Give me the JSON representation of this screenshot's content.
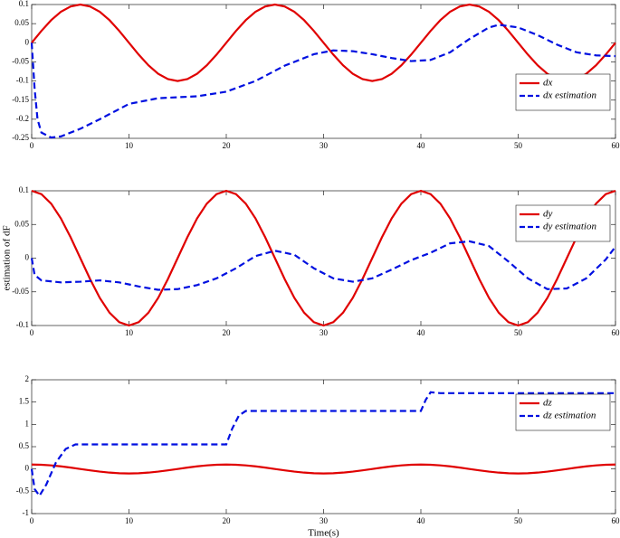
{
  "chart_data": [
    {
      "type": "line",
      "xlim": [
        0,
        60
      ],
      "ylim": [
        -0.25,
        0.1
      ],
      "xticks": [
        0,
        10,
        20,
        30,
        40,
        50,
        60
      ],
      "yticks": [
        -0.25,
        -0.2,
        -0.15,
        -0.1,
        -0.05,
        0,
        0.05,
        0.1
      ],
      "legend": "lower right",
      "series": [
        {
          "name": "dx",
          "color": "#e00000",
          "dash": false,
          "x": [
            0,
            1,
            2,
            3,
            4,
            5,
            6,
            7,
            8,
            9,
            10,
            11,
            12,
            13,
            14,
            15,
            16,
            17,
            18,
            19,
            20,
            21,
            22,
            23,
            24,
            25,
            26,
            27,
            28,
            29,
            30,
            31,
            32,
            33,
            34,
            35,
            36,
            37,
            38,
            39,
            40,
            41,
            42,
            43,
            44,
            45,
            46,
            47,
            48,
            49,
            50,
            51,
            52,
            53,
            54,
            55,
            56,
            57,
            58,
            59,
            60
          ],
          "values": [
            0,
            0.031,
            0.059,
            0.081,
            0.095,
            0.1,
            0.095,
            0.081,
            0.059,
            0.031,
            0,
            -0.031,
            -0.059,
            -0.081,
            -0.095,
            -0.1,
            -0.095,
            -0.081,
            -0.059,
            -0.031,
            0,
            0.031,
            0.059,
            0.081,
            0.095,
            0.1,
            0.095,
            0.081,
            0.059,
            0.031,
            0,
            -0.031,
            -0.059,
            -0.081,
            -0.095,
            -0.1,
            -0.095,
            -0.081,
            -0.059,
            -0.031,
            0,
            0.031,
            0.059,
            0.081,
            0.095,
            0.1,
            0.095,
            0.081,
            0.059,
            0.031,
            0,
            -0.031,
            -0.059,
            -0.081,
            -0.095,
            -0.1,
            -0.095,
            -0.081,
            -0.059,
            -0.031,
            0
          ]
        },
        {
          "name": "dx estimation",
          "color": "#0010e0",
          "dash": true,
          "x": [
            0,
            0.3,
            0.6,
            1,
            2,
            3,
            5,
            7,
            10,
            13,
            17,
            20,
            23,
            26,
            29,
            31,
            33,
            35,
            37,
            39,
            41,
            43,
            45,
            47,
            48,
            50,
            52,
            54,
            56,
            58,
            60
          ],
          "values": [
            0,
            -0.12,
            -0.2,
            -0.235,
            -0.248,
            -0.245,
            -0.225,
            -0.2,
            -0.16,
            -0.145,
            -0.14,
            -0.128,
            -0.1,
            -0.06,
            -0.03,
            -0.02,
            -0.022,
            -0.03,
            -0.04,
            -0.048,
            -0.045,
            -0.025,
            0.01,
            0.04,
            0.047,
            0.04,
            0.02,
            -0.005,
            -0.025,
            -0.033,
            -0.035
          ]
        }
      ]
    },
    {
      "type": "line",
      "ylabel": "estimation of dF",
      "xlim": [
        0,
        60
      ],
      "ylim": [
        -0.1,
        0.1
      ],
      "xticks": [
        0,
        10,
        20,
        30,
        40,
        50,
        60
      ],
      "yticks": [
        -0.1,
        -0.05,
        0,
        0.05,
        0.1
      ],
      "legend": "upper right",
      "series": [
        {
          "name": "dy",
          "color": "#e00000",
          "dash": false,
          "x": [
            0,
            1,
            2,
            3,
            4,
            5,
            6,
            7,
            8,
            9,
            10,
            11,
            12,
            13,
            14,
            15,
            16,
            17,
            18,
            19,
            20,
            21,
            22,
            23,
            24,
            25,
            26,
            27,
            28,
            29,
            30,
            31,
            32,
            33,
            34,
            35,
            36,
            37,
            38,
            39,
            40,
            41,
            42,
            43,
            44,
            45,
            46,
            47,
            48,
            49,
            50,
            51,
            52,
            53,
            54,
            55,
            56,
            57,
            58,
            59,
            60
          ],
          "values": [
            0.1,
            0.095,
            0.081,
            0.059,
            0.031,
            0,
            -0.031,
            -0.059,
            -0.081,
            -0.095,
            -0.1,
            -0.095,
            -0.081,
            -0.059,
            -0.031,
            0,
            0.031,
            0.059,
            0.081,
            0.095,
            0.1,
            0.095,
            0.081,
            0.059,
            0.031,
            0,
            -0.031,
            -0.059,
            -0.081,
            -0.095,
            -0.1,
            -0.095,
            -0.081,
            -0.059,
            -0.031,
            0,
            0.031,
            0.059,
            0.081,
            0.095,
            0.1,
            0.095,
            0.081,
            0.059,
            0.031,
            0,
            -0.031,
            -0.059,
            -0.081,
            -0.095,
            -0.1,
            -0.095,
            -0.081,
            -0.059,
            -0.031,
            0,
            0.031,
            0.059,
            0.081,
            0.095,
            0.1
          ]
        },
        {
          "name": "dy estimation",
          "color": "#0010e0",
          "dash": true,
          "x": [
            0,
            0.3,
            1,
            3,
            5,
            7,
            9,
            11,
            13,
            15,
            17,
            19,
            21,
            23,
            25,
            27,
            29,
            31,
            33,
            35,
            37,
            39,
            41,
            43,
            45,
            47,
            49,
            51,
            53,
            55,
            57,
            59,
            60
          ],
          "values": [
            0,
            -0.025,
            -0.033,
            -0.036,
            -0.035,
            -0.033,
            -0.036,
            -0.042,
            -0.047,
            -0.046,
            -0.04,
            -0.03,
            -0.015,
            0.003,
            0.011,
            0.005,
            -0.015,
            -0.03,
            -0.035,
            -0.03,
            -0.017,
            -0.003,
            0.008,
            0.022,
            0.025,
            0.018,
            -0.005,
            -0.03,
            -0.046,
            -0.045,
            -0.03,
            -0.002,
            0.017
          ]
        }
      ]
    },
    {
      "type": "line",
      "xlabel": "Time(s)",
      "xlim": [
        0,
        60
      ],
      "ylim": [
        -1,
        2
      ],
      "xticks": [
        0,
        10,
        20,
        30,
        40,
        50,
        60
      ],
      "yticks": [
        -1,
        -0.5,
        0,
        0.5,
        1,
        1.5,
        2
      ],
      "legend": "upper right",
      "series": [
        {
          "name": "dz",
          "color": "#e00000",
          "dash": false,
          "x": [
            0,
            1,
            2,
            3,
            4,
            5,
            6,
            7,
            8,
            9,
            10,
            11,
            12,
            13,
            14,
            15,
            16,
            17,
            18,
            19,
            20,
            21,
            22,
            23,
            24,
            25,
            26,
            27,
            28,
            29,
            30,
            31,
            32,
            33,
            34,
            35,
            36,
            37,
            38,
            39,
            40,
            41,
            42,
            43,
            44,
            45,
            46,
            47,
            48,
            49,
            50,
            51,
            52,
            53,
            54,
            55,
            56,
            57,
            58,
            59,
            60
          ],
          "values": [
            0.1,
            0.095,
            0.081,
            0.059,
            0.031,
            0,
            -0.031,
            -0.059,
            -0.081,
            -0.095,
            -0.1,
            -0.095,
            -0.081,
            -0.059,
            -0.031,
            0,
            0.031,
            0.059,
            0.081,
            0.095,
            0.1,
            0.095,
            0.081,
            0.059,
            0.031,
            0,
            -0.031,
            -0.059,
            -0.081,
            -0.095,
            -0.1,
            -0.095,
            -0.081,
            -0.059,
            -0.031,
            0,
            0.031,
            0.059,
            0.081,
            0.095,
            0.1,
            0.095,
            0.081,
            0.059,
            0.031,
            0,
            -0.031,
            -0.059,
            -0.081,
            -0.095,
            -0.1,
            -0.095,
            -0.081,
            -0.059,
            -0.031,
            0,
            0.031,
            0.059,
            0.081,
            0.095,
            0.1
          ]
        },
        {
          "name": "dz estimation",
          "color": "#0010e0",
          "dash": true,
          "x": [
            0,
            0.3,
            0.8,
            1.5,
            2.5,
            3.5,
            4.5,
            20,
            20.6,
            21.3,
            22,
            40,
            40.5,
            41,
            42,
            60
          ],
          "values": [
            0,
            -0.45,
            -0.6,
            -0.35,
            0.15,
            0.45,
            0.55,
            0.55,
            0.9,
            1.2,
            1.3,
            1.3,
            1.55,
            1.72,
            1.7,
            1.7
          ]
        }
      ]
    }
  ]
}
